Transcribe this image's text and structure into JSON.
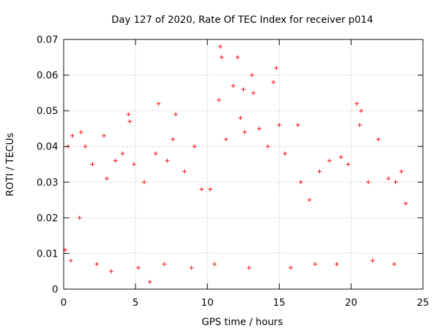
{
  "chart_data": {
    "type": "scatter",
    "title": "Day 127 of 2020, Rate Of TEC Index for receiver p014",
    "xlabel": "GPS time / hours",
    "ylabel": "ROTI / TECUs",
    "xlim": [
      0,
      25
    ],
    "ylim": [
      0,
      0.07
    ],
    "xticks": [
      0,
      5,
      10,
      15,
      20,
      25
    ],
    "xtick_labels": [
      "0",
      "5",
      "10",
      "15",
      "20",
      "25"
    ],
    "yticks": [
      0,
      0.01,
      0.02,
      0.03,
      0.04,
      0.05,
      0.06,
      0.07
    ],
    "ytick_labels": [
      "0",
      "0.01",
      "0.02",
      "0.03",
      "0.04",
      "0.05",
      "0.06",
      "0.07"
    ],
    "grid": true,
    "marker": "plus",
    "color": "#ff0000",
    "series": [
      {
        "name": "ROTI",
        "x": [
          0.1,
          0.3,
          0.6,
          1.1,
          1.2,
          1.5,
          2.0,
          2.8,
          3.0,
          3.6,
          4.1,
          4.5,
          4.6,
          4.9,
          5.6,
          6.0,
          6.4,
          6.6,
          7.2,
          7.6,
          7.8,
          8.4,
          9.1,
          9.6,
          10.2,
          10.8,
          10.9,
          11.0,
          11.3,
          11.8,
          12.1,
          12.3,
          12.5,
          12.6,
          13.1,
          13.2,
          13.6,
          14.2,
          14.6,
          14.8,
          15.0,
          15.4,
          16.3,
          16.5,
          17.1,
          17.8,
          18.5,
          19.3,
          19.8,
          20.4,
          20.6,
          20.7,
          21.2,
          21.9,
          22.6,
          23.1,
          23.5,
          23.8,
          0.5,
          2.3,
          3.3,
          5.2,
          7.0,
          8.9,
          10.5,
          12.9,
          15.8,
          17.5,
          19.0,
          21.5,
          23.0
        ],
        "y": [
          0.011,
          0.04,
          0.043,
          0.02,
          0.044,
          0.04,
          0.035,
          0.043,
          0.031,
          0.036,
          0.038,
          0.049,
          0.047,
          0.035,
          0.03,
          0.002,
          0.038,
          0.052,
          0.036,
          0.042,
          0.049,
          0.033,
          0.04,
          0.028,
          0.028,
          0.053,
          0.068,
          0.065,
          0.042,
          0.057,
          0.065,
          0.048,
          0.056,
          0.044,
          0.06,
          0.055,
          0.045,
          0.04,
          0.058,
          0.062,
          0.046,
          0.038,
          0.046,
          0.03,
          0.025,
          0.033,
          0.036,
          0.037,
          0.035,
          0.052,
          0.046,
          0.05,
          0.03,
          0.042,
          0.031,
          0.03,
          0.033,
          0.024,
          0.008,
          0.007,
          0.005,
          0.006,
          0.007,
          0.006,
          0.007,
          0.006,
          0.006,
          0.007,
          0.007,
          0.008,
          0.007
        ]
      }
    ]
  }
}
